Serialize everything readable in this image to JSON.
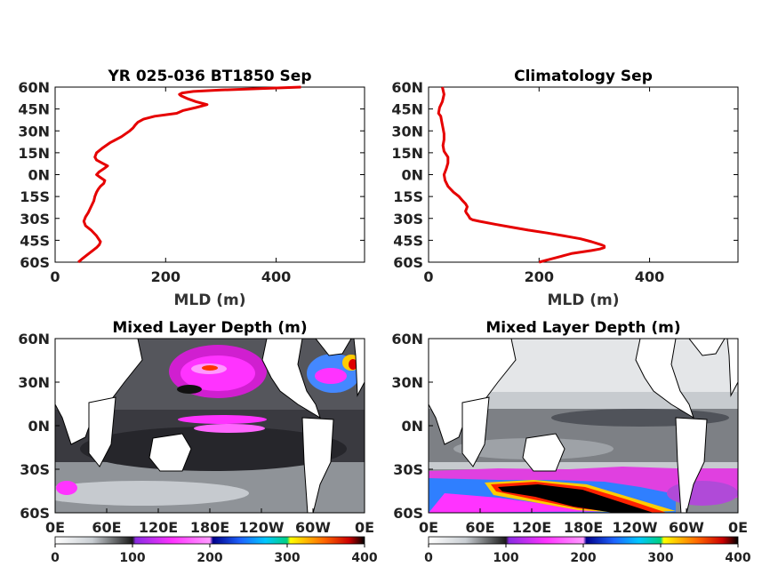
{
  "chart_data": [
    {
      "type": "line",
      "title": "YR 025-036 BT1850 Sep",
      "xlabel": "MLD (m)",
      "xlim": [
        0,
        560
      ],
      "ylim": [
        -60,
        60
      ],
      "xticks": [
        "0",
        "200",
        "400"
      ],
      "yticks": [
        "60N",
        "45N",
        "30N",
        "15N",
        "0N",
        "15S",
        "30S",
        "45S",
        "60S"
      ],
      "color": "#e60000",
      "series": [
        {
          "lat": [
            60,
            58,
            57,
            56,
            55,
            54,
            52,
            50,
            48,
            46,
            44,
            42,
            40,
            38,
            36,
            34,
            32,
            30,
            26,
            22,
            18,
            15,
            12,
            10,
            8,
            6,
            4,
            2,
            0,
            -2,
            -4,
            -6,
            -8,
            -10,
            -12,
            -15,
            -18,
            -22,
            -26,
            -29,
            -32,
            -35,
            -38,
            -42,
            -46,
            -48,
            -50,
            -52,
            -55,
            -58,
            -60
          ],
          "mld": [
            445,
            300,
            250,
            230,
            225,
            228,
            240,
            255,
            275,
            255,
            232,
            220,
            180,
            160,
            150,
            145,
            141,
            135,
            120,
            100,
            85,
            75,
            72,
            75,
            85,
            95,
            88,
            80,
            75,
            82,
            90,
            88,
            82,
            78,
            75,
            72,
            70,
            65,
            60,
            55,
            52,
            55,
            65,
            75,
            82,
            80,
            75,
            68,
            58,
            48,
            42
          ]
        }
      ]
    },
    {
      "type": "line",
      "title": "Climatology Sep",
      "xlabel": "MLD (m)",
      "xlim": [
        0,
        560
      ],
      "ylim": [
        -60,
        60
      ],
      "xticks": [
        "0",
        "200",
        "400"
      ],
      "yticks": [
        "60N",
        "45N",
        "30N",
        "15N",
        "0N",
        "15S",
        "30S",
        "45S",
        "60S"
      ],
      "color": "#e60000",
      "series": [
        {
          "lat": [
            60,
            55,
            50,
            46,
            42,
            40,
            36,
            32,
            28,
            24,
            20,
            16,
            12,
            8,
            4,
            0,
            -4,
            -8,
            -12,
            -15,
            -18,
            -20,
            -22,
            -24,
            -25,
            -26,
            -28,
            -30,
            -31,
            -32,
            -34,
            -36,
            -38,
            -40,
            -42,
            -44,
            -46,
            -48,
            -49,
            -50,
            -51,
            -52,
            -54,
            -56,
            -58,
            -60
          ],
          "mld": [
            25,
            28,
            25,
            20,
            18,
            22,
            24,
            26,
            28,
            28,
            26,
            28,
            35,
            35,
            32,
            28,
            30,
            35,
            45,
            55,
            62,
            67,
            70,
            68,
            67,
            68,
            72,
            75,
            80,
            92,
            120,
            150,
            180,
            215,
            245,
            275,
            295,
            312,
            318,
            318,
            310,
            295,
            260,
            240,
            220,
            200
          ]
        }
      ]
    },
    {
      "type": "heatmap",
      "title": "Mixed Layer Depth (m)",
      "xticks": [
        "0E",
        "60E",
        "120E",
        "180E",
        "120W",
        "60W",
        "0E"
      ],
      "yticks": [
        "60N",
        "30N",
        "0N",
        "30S",
        "60S"
      ],
      "colorbar_ticks": [
        "0",
        "100",
        "200",
        "300",
        "400"
      ],
      "colorbar_range": [
        0,
        400
      ]
    },
    {
      "type": "heatmap",
      "title": "Mixed Layer Depth (m)",
      "xticks": [
        "0E",
        "60E",
        "120E",
        "180E",
        "120W",
        "60W",
        "0E"
      ],
      "yticks": [
        "60N",
        "30N",
        "0N",
        "30S",
        "60S"
      ],
      "colorbar_ticks": [
        "0",
        "100",
        "200",
        "300",
        "400"
      ],
      "colorbar_range": [
        0,
        400
      ]
    }
  ]
}
